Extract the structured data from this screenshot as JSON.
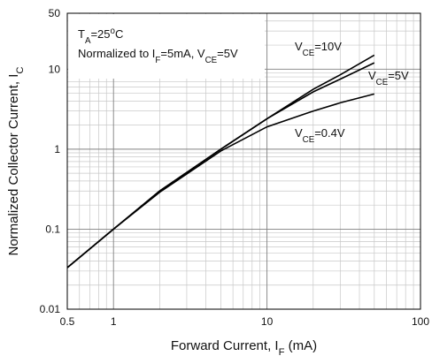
{
  "chart_data": {
    "type": "line",
    "xlog": true,
    "ylog": true,
    "grid": true,
    "x": [
      0.5,
      1,
      2,
      5,
      10,
      20,
      30,
      50
    ],
    "series": [
      {
        "name": "VCE=10V",
        "color": "#000000",
        "values": [
          0.033,
          0.1,
          0.3,
          1.0,
          2.4,
          5.6,
          8.5,
          15
        ]
      },
      {
        "name": "VCE=5V",
        "color": "#000000",
        "values": [
          0.033,
          0.1,
          0.3,
          1.0,
          2.4,
          5.2,
          7.5,
          12
        ]
      },
      {
        "name": "VCE=0.4V",
        "color": "#000000",
        "values": [
          0.033,
          0.1,
          0.29,
          0.95,
          1.9,
          3.0,
          3.8,
          4.9
        ]
      }
    ],
    "xlim": [
      0.5,
      100
    ],
    "ylim": [
      0.01,
      50
    ],
    "xticks": [
      0.5,
      1,
      10,
      100
    ],
    "yticks": [
      0.01,
      0.1,
      1,
      10,
      50
    ],
    "xminorticks": [
      0.6,
      0.7,
      0.8,
      0.9,
      2,
      3,
      4,
      5,
      6,
      7,
      8,
      9,
      20,
      30,
      40,
      50,
      60,
      70,
      80,
      90
    ],
    "yminorticks": [
      0.02,
      0.03,
      0.04,
      0.05,
      0.06,
      0.07,
      0.08,
      0.09,
      0.2,
      0.3,
      0.4,
      0.5,
      0.6,
      0.7,
      0.8,
      0.9,
      2,
      3,
      4,
      5,
      6,
      7,
      8,
      9,
      20,
      30,
      40
    ],
    "xlabel": [
      {
        "text": "Forward Current, I"
      },
      {
        "text": "F",
        "sub": true
      },
      {
        "text": " (mA)"
      }
    ],
    "ylabel": [
      {
        "text": "Normalized Collector Current, I"
      },
      {
        "text": "C",
        "sub": true
      }
    ],
    "annotations": [
      [
        {
          "text": "T"
        },
        {
          "text": "A",
          "sub": true
        },
        {
          "text": "=25"
        },
        {
          "text": "o",
          "sup": true
        },
        {
          "text": "C"
        }
      ],
      [
        {
          "text": "Normalized to I"
        },
        {
          "text": "F",
          "sub": true
        },
        {
          "text": "=5mA, V"
        },
        {
          "text": "CE",
          "sub": true
        },
        {
          "text": "=5V"
        }
      ]
    ]
  }
}
